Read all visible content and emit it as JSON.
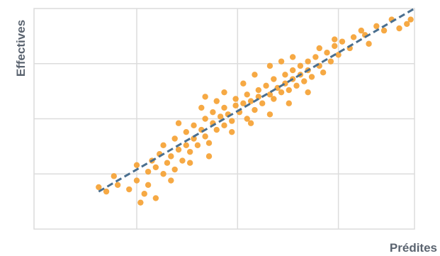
{
  "chart_data": {
    "type": "scatter",
    "title": "",
    "xlabel": "Prédites",
    "ylabel": "Effectives",
    "xlim": [
      0,
      100
    ],
    "ylim": [
      0,
      100
    ],
    "grid": true,
    "legend": "none",
    "colors": {
      "points": "#f5a030",
      "reference_line": "#4a6f8f",
      "grid": "#dcdcdc",
      "label": "#5b6470"
    },
    "series": [
      {
        "type": "scatter",
        "points": [
          [
            17,
            19
          ],
          [
            19,
            17
          ],
          [
            21,
            24
          ],
          [
            22,
            20
          ],
          [
            25,
            18
          ],
          [
            27,
            22
          ],
          [
            28,
            12
          ],
          [
            29,
            16
          ],
          [
            30,
            20
          ],
          [
            30,
            26
          ],
          [
            31,
            31
          ],
          [
            32,
            28
          ],
          [
            33,
            34
          ],
          [
            34,
            25
          ],
          [
            34,
            38
          ],
          [
            35,
            30
          ],
          [
            36,
            33
          ],
          [
            37,
            27
          ],
          [
            37,
            41
          ],
          [
            38,
            36
          ],
          [
            39,
            31
          ],
          [
            40,
            44
          ],
          [
            40,
            38
          ],
          [
            41,
            35
          ],
          [
            42,
            47
          ],
          [
            42,
            41
          ],
          [
            43,
            38
          ],
          [
            44,
            45
          ],
          [
            45,
            42
          ],
          [
            45,
            50
          ],
          [
            46,
            39
          ],
          [
            47,
            48
          ],
          [
            47,
            53
          ],
          [
            48,
            45
          ],
          [
            49,
            51
          ],
          [
            50,
            47
          ],
          [
            50,
            55
          ],
          [
            51,
            52
          ],
          [
            52,
            49
          ],
          [
            53,
            56
          ],
          [
            53,
            59
          ],
          [
            54,
            53
          ],
          [
            55,
            57
          ],
          [
            56,
            50
          ],
          [
            56,
            61
          ],
          [
            57,
            58
          ],
          [
            58,
            54
          ],
          [
            59,
            63
          ],
          [
            59,
            60
          ],
          [
            60,
            57
          ],
          [
            61,
            65
          ],
          [
            62,
            61
          ],
          [
            63,
            59
          ],
          [
            63,
            68
          ],
          [
            64,
            64
          ],
          [
            65,
            62
          ],
          [
            66,
            70
          ],
          [
            66,
            66
          ],
          [
            67,
            63
          ],
          [
            68,
            72
          ],
          [
            68,
            68
          ],
          [
            69,
            65
          ],
          [
            70,
            74
          ],
          [
            70,
            70
          ],
          [
            71,
            67
          ],
          [
            72,
            76
          ],
          [
            72,
            72
          ],
          [
            73,
            69
          ],
          [
            74,
            78
          ],
          [
            75,
            74
          ],
          [
            76,
            71
          ],
          [
            77,
            80
          ],
          [
            78,
            76
          ],
          [
            79,
            83
          ],
          [
            80,
            79
          ],
          [
            81,
            85
          ],
          [
            83,
            82
          ],
          [
            84,
            87
          ],
          [
            86,
            90
          ],
          [
            87,
            88
          ],
          [
            88,
            84
          ],
          [
            90,
            92
          ],
          [
            92,
            90
          ],
          [
            94,
            95
          ],
          [
            96,
            91
          ],
          [
            98,
            93
          ],
          [
            99,
            95
          ],
          [
            55,
            66
          ],
          [
            58,
            70
          ],
          [
            62,
            74
          ],
          [
            65,
            76
          ],
          [
            68,
            78
          ],
          [
            44,
            55
          ],
          [
            48,
            58
          ],
          [
            38,
            48
          ],
          [
            52,
            44
          ],
          [
            57,
            48
          ],
          [
            62,
            52
          ],
          [
            67,
            57
          ],
          [
            72,
            62
          ],
          [
            46,
            33
          ],
          [
            41,
            30
          ],
          [
            36,
            22
          ],
          [
            32,
            14
          ],
          [
            75,
            82
          ],
          [
            79,
            86
          ],
          [
            45,
            60
          ],
          [
            50,
            62
          ],
          [
            27,
            29
          ]
        ]
      },
      {
        "type": "line",
        "style": "dashed",
        "points": [
          [
            17,
            17
          ],
          [
            100,
            100
          ]
        ]
      }
    ]
  }
}
